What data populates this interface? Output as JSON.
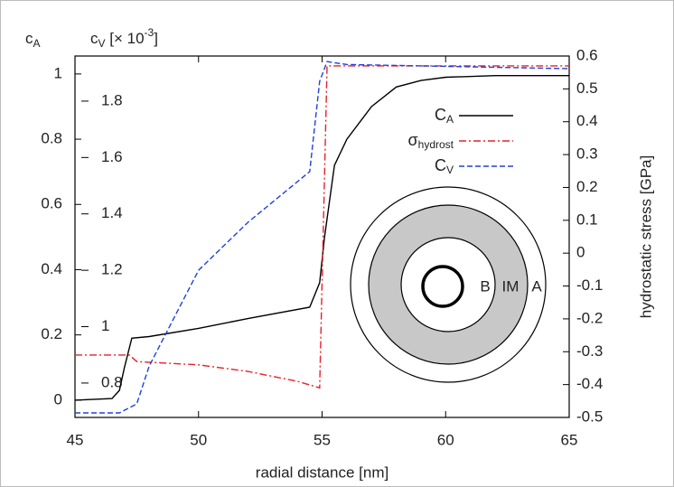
{
  "chart_data": {
    "type": "line",
    "xlabel": "radial distance [nm]",
    "ylabel": [
      "c",
      "A"
    ],
    "y2label": "hydrostatic stress [GPa]",
    "y3label": [
      "c",
      "V",
      " [× 10",
      "-3",
      "]"
    ],
    "xlim": [
      45,
      65
    ],
    "xticks": [
      45,
      50,
      55,
      60,
      65
    ],
    "ylim": [
      -0.053,
      1.055
    ],
    "yticks": [
      0,
      0.2,
      0.4,
      0.6,
      0.8,
      1
    ],
    "y2lim": [
      -0.5,
      0.6
    ],
    "y2ticks": [
      -0.5,
      -0.4,
      -0.3,
      -0.2,
      -0.1,
      0,
      0.1,
      0.2,
      0.3,
      0.4,
      0.5,
      0.6
    ],
    "y3lim": [
      0.678,
      1.96
    ],
    "y3ticks": [
      0.8,
      1,
      1.2,
      1.4,
      1.6,
      1.8
    ],
    "legend": "upper right",
    "series": [
      {
        "name": [
          "C",
          "A"
        ],
        "color": "#000000",
        "dash": "solid",
        "axis": "y",
        "x": [
          45,
          46.5,
          46.8,
          47.0,
          47.3,
          48,
          50,
          52,
          54.5,
          54.9,
          55.1,
          55.5,
          56,
          57,
          58,
          59,
          60,
          62,
          65
        ],
        "values": [
          0,
          0.005,
          0.03,
          0.1,
          0.19,
          0.195,
          0.22,
          0.25,
          0.285,
          0.36,
          0.5,
          0.72,
          0.8,
          0.9,
          0.96,
          0.98,
          0.99,
          0.995,
          0.995
        ]
      },
      {
        "name": [
          "σ",
          "hydrost"
        ],
        "color": "#e8202a",
        "dash": "dashdot",
        "axis": "y2",
        "x": [
          45,
          47.2,
          47.5,
          50,
          52,
          54,
          54.9,
          55.2,
          65
        ],
        "values": [
          -0.31,
          -0.31,
          -0.33,
          -0.34,
          -0.36,
          -0.39,
          -0.41,
          0.57,
          0.57
        ]
      },
      {
        "name": [
          "C",
          "V"
        ],
        "color": "#2040e0",
        "dash": "dashed",
        "axis": "y3",
        "x": [
          45,
          46.8,
          47.5,
          48,
          49,
          50,
          52,
          54.5,
          54.9,
          55.2,
          56,
          65
        ],
        "values": [
          0.694,
          0.694,
          0.726,
          0.86,
          1.03,
          1.2,
          1.37,
          1.55,
          1.87,
          1.94,
          1.93,
          1.915
        ]
      }
    ],
    "annotations": [
      "B",
      "IM",
      "A"
    ]
  }
}
